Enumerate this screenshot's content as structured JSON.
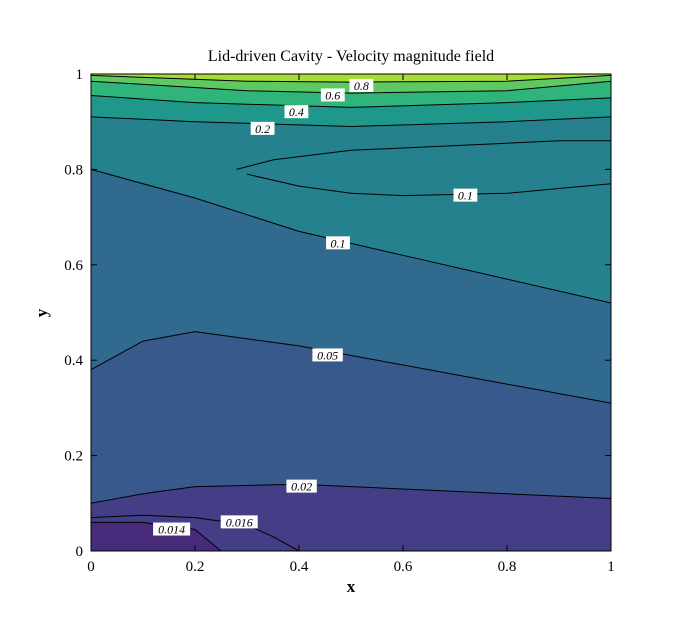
{
  "chart_data": {
    "type": "contour",
    "title": "Lid-driven Cavity - Velocity magnitude field",
    "xlabel": "x",
    "ylabel": "y",
    "xlim": [
      0,
      1
    ],
    "ylim": [
      0,
      1
    ],
    "xticks": [
      "0",
      "0.2",
      "0.4",
      "0.6",
      "0.8",
      "1"
    ],
    "yticks": [
      "0",
      "0.2",
      "0.4",
      "0.6",
      "0.8",
      "1"
    ],
    "grid": false,
    "legend": "none",
    "bands": [
      {
        "color": "#472a79",
        "lines": [
          [
            0,
            0.06
          ],
          [
            0.1,
            0.06
          ],
          [
            0.2,
            0.045
          ],
          [
            0.25,
            0.0
          ]
        ],
        "close": "bl"
      },
      {
        "color": "#433e85",
        "lines": [
          [
            0,
            0.06
          ],
          [
            0.1,
            0.06
          ],
          [
            0.2,
            0.045
          ],
          [
            0.25,
            0.0
          ],
          [
            0.4,
            0.0
          ],
          [
            0.35,
            0.03
          ],
          [
            0.3,
            0.055
          ],
          [
            0.2,
            0.07
          ],
          [
            0.1,
            0.075
          ],
          [
            0,
            0.07
          ]
        ]
      },
      {
        "color": "#38598c",
        "lines": [
          [
            0,
            0.1
          ],
          [
            0.1,
            0.12
          ],
          [
            0.2,
            0.135
          ],
          [
            0.4,
            0.14
          ],
          [
            0.6,
            0.13
          ],
          [
            0.8,
            0.12
          ],
          [
            1.0,
            0.11
          ]
        ]
      },
      {
        "color": "#306a8e",
        "lines": [
          [
            0,
            0.38
          ],
          [
            0.1,
            0.44
          ],
          [
            0.2,
            0.46
          ],
          [
            0.4,
            0.43
          ],
          [
            0.6,
            0.39
          ],
          [
            0.8,
            0.35
          ],
          [
            1.0,
            0.31
          ]
        ]
      },
      {
        "color": "#26818e",
        "lines": [
          [
            0,
            0.8
          ],
          [
            0.2,
            0.74
          ],
          [
            0.4,
            0.67
          ],
          [
            0.6,
            0.62
          ],
          [
            0.8,
            0.57
          ],
          [
            1.0,
            0.52
          ]
        ]
      },
      {
        "color": "#1f978b",
        "lines": [
          [
            0,
            0.91
          ],
          [
            0.2,
            0.9
          ],
          [
            0.5,
            0.89
          ],
          [
            0.8,
            0.9
          ],
          [
            1.0,
            0.91
          ]
        ]
      },
      {
        "color": "#2fb47c",
        "lines": [
          [
            0,
            0.955
          ],
          [
            0.2,
            0.94
          ],
          [
            0.5,
            0.93
          ],
          [
            0.8,
            0.94
          ],
          [
            1.0,
            0.95
          ]
        ]
      },
      {
        "color": "#5ec962",
        "lines": [
          [
            0,
            0.985
          ],
          [
            0.3,
            0.965
          ],
          [
            0.5,
            0.96
          ],
          [
            0.8,
            0.965
          ],
          [
            1.0,
            0.985
          ]
        ]
      },
      {
        "color": "#a8db34",
        "lines": [
          [
            0,
            0.997
          ],
          [
            0.3,
            0.985
          ],
          [
            0.5,
            0.983
          ],
          [
            0.8,
            0.985
          ],
          [
            1.0,
            0.997
          ]
        ]
      }
    ],
    "inner_island": {
      "color": "#26818e",
      "points": [
        [
          0.28,
          0.8
        ],
        [
          0.35,
          0.82
        ],
        [
          0.5,
          0.84
        ],
        [
          0.7,
          0.85
        ],
        [
          0.9,
          0.86
        ],
        [
          1.0,
          0.86
        ],
        [
          1.0,
          0.77
        ],
        [
          0.9,
          0.76
        ],
        [
          0.8,
          0.75
        ],
        [
          0.6,
          0.745
        ],
        [
          0.5,
          0.75
        ],
        [
          0.4,
          0.765
        ],
        [
          0.3,
          0.79
        ]
      ]
    },
    "contour_labels": [
      {
        "text": "0.8",
        "x": 0.52,
        "y": 0.975
      },
      {
        "text": "0.6",
        "x": 0.465,
        "y": 0.955
      },
      {
        "text": "0.4",
        "x": 0.395,
        "y": 0.92
      },
      {
        "text": "0.2",
        "x": 0.33,
        "y": 0.885
      },
      {
        "text": "0.1",
        "x": 0.72,
        "y": 0.745
      },
      {
        "text": "0.1",
        "x": 0.475,
        "y": 0.645
      },
      {
        "text": "0.05",
        "x": 0.455,
        "y": 0.41
      },
      {
        "text": "0.02",
        "x": 0.405,
        "y": 0.135
      },
      {
        "text": "0.016",
        "x": 0.285,
        "y": 0.06
      },
      {
        "text": "0.014",
        "x": 0.155,
        "y": 0.045
      }
    ]
  }
}
